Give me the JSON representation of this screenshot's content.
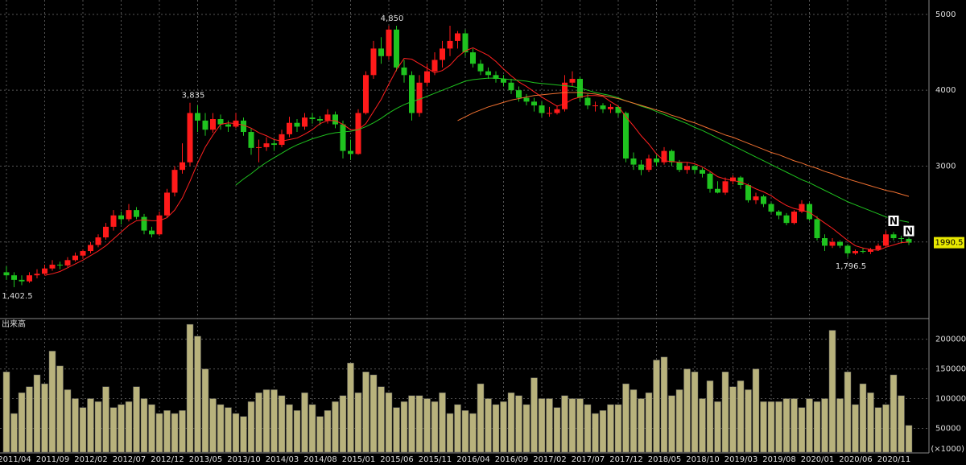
{
  "chart_data": {
    "type": "candlestick",
    "categories": [
      "2011/04",
      null,
      null,
      null,
      null,
      "2011/09",
      null,
      null,
      null,
      null,
      "2012/02",
      null,
      null,
      null,
      null,
      "2012/07",
      null,
      null,
      null,
      null,
      "2012/12",
      null,
      null,
      null,
      null,
      "2013/05",
      null,
      null,
      null,
      null,
      "2013/10",
      null,
      null,
      null,
      null,
      "2014/03",
      null,
      null,
      null,
      null,
      "2014/08",
      null,
      null,
      null,
      null,
      "2015/01",
      null,
      null,
      null,
      null,
      "2015/06",
      null,
      null,
      null,
      null,
      "2015/11",
      null,
      null,
      null,
      null,
      "2016/04",
      null,
      null,
      null,
      null,
      "2016/09",
      null,
      null,
      null,
      null,
      "2017/02",
      null,
      null,
      null,
      null,
      "2017/07",
      null,
      null,
      null,
      null,
      "2017/12",
      null,
      null,
      null,
      null,
      "2018/05",
      null,
      null,
      null,
      null,
      "2018/10",
      null,
      null,
      null,
      null,
      "2019/03",
      null,
      null,
      null,
      null,
      "2019/08",
      null,
      null,
      null,
      null,
      "2020/01",
      null,
      null,
      null,
      null,
      "2020/06",
      null,
      null,
      null,
      null,
      "2020/11",
      null,
      null,
      null
    ],
    "ohlc": [
      [
        1600,
        1680,
        1500,
        1560
      ],
      [
        1560,
        1600,
        1402.5,
        1500
      ],
      [
        1500,
        1560,
        1430,
        1480
      ],
      [
        1480,
        1600,
        1460,
        1560
      ],
      [
        1560,
        1640,
        1520,
        1580
      ],
      [
        1580,
        1700,
        1560,
        1650
      ],
      [
        1650,
        1760,
        1620,
        1700
      ],
      [
        1700,
        1740,
        1640,
        1690
      ],
      [
        1690,
        1800,
        1670,
        1760
      ],
      [
        1760,
        1860,
        1740,
        1820
      ],
      [
        1820,
        1900,
        1780,
        1880
      ],
      [
        1880,
        2000,
        1850,
        1960
      ],
      [
        1960,
        2100,
        1930,
        2060
      ],
      [
        2060,
        2250,
        2030,
        2200
      ],
      [
        2200,
        2420,
        2150,
        2350
      ],
      [
        2350,
        2400,
        2230,
        2300
      ],
      [
        2300,
        2500,
        2270,
        2420
      ],
      [
        2420,
        2460,
        2300,
        2330
      ],
      [
        2330,
        2370,
        2100,
        2150
      ],
      [
        2150,
        2200,
        2060,
        2100
      ],
      [
        2100,
        2400,
        2080,
        2350
      ],
      [
        2350,
        2700,
        2320,
        2650
      ],
      [
        2650,
        3000,
        2600,
        2950
      ],
      [
        2950,
        3300,
        2900,
        3050
      ],
      [
        3050,
        3835,
        3000,
        3700
      ],
      [
        3700,
        3800,
        3450,
        3600
      ],
      [
        3600,
        3700,
        3400,
        3480
      ],
      [
        3480,
        3700,
        3440,
        3620
      ],
      [
        3620,
        3680,
        3480,
        3550
      ],
      [
        3550,
        3600,
        3450,
        3520
      ],
      [
        3520,
        3700,
        3500,
        3600
      ],
      [
        3600,
        3640,
        3400,
        3450
      ],
      [
        3450,
        3500,
        3150,
        3240
      ],
      [
        3240,
        3350,
        3050,
        3250
      ],
      [
        3250,
        3380,
        3200,
        3300
      ],
      [
        3300,
        3360,
        3200,
        3280
      ],
      [
        3280,
        3480,
        3250,
        3420
      ],
      [
        3420,
        3650,
        3380,
        3570
      ],
      [
        3570,
        3620,
        3450,
        3520
      ],
      [
        3520,
        3700,
        3480,
        3640
      ],
      [
        3640,
        3700,
        3560,
        3620
      ],
      [
        3620,
        3660,
        3540,
        3600
      ],
      [
        3600,
        3750,
        3560,
        3680
      ],
      [
        3680,
        3720,
        3500,
        3550
      ],
      [
        3550,
        3600,
        3100,
        3200
      ],
      [
        3200,
        3350,
        3080,
        3160
      ],
      [
        3160,
        3750,
        3150,
        3700
      ],
      [
        3700,
        4250,
        3680,
        4200
      ],
      [
        4200,
        4650,
        4150,
        4550
      ],
      [
        4550,
        4700,
        4350,
        4450
      ],
      [
        4450,
        4850,
        4400,
        4800
      ],
      [
        4800,
        4850,
        4250,
        4300
      ],
      [
        4300,
        4400,
        4100,
        4200
      ],
      [
        4200,
        4250,
        3600,
        3700
      ],
      [
        3700,
        4200,
        3650,
        4100
      ],
      [
        4100,
        4350,
        4050,
        4250
      ],
      [
        4250,
        4500,
        4200,
        4400
      ],
      [
        4400,
        4650,
        4300,
        4550
      ],
      [
        4550,
        4850,
        4450,
        4650
      ],
      [
        4650,
        4780,
        4550,
        4750
      ],
      [
        4750,
        4800,
        4450,
        4500
      ],
      [
        4500,
        4550,
        4300,
        4350
      ],
      [
        4350,
        4400,
        4200,
        4250
      ],
      [
        4250,
        4300,
        4150,
        4200
      ],
      [
        4200,
        4250,
        4100,
        4150
      ],
      [
        4150,
        4200,
        4050,
        4100
      ],
      [
        4100,
        4150,
        3950,
        4000
      ],
      [
        4000,
        4050,
        3850,
        3900
      ],
      [
        3900,
        3950,
        3800,
        3850
      ],
      [
        3850,
        3900,
        3720,
        3800
      ],
      [
        3800,
        3850,
        3650,
        3700
      ],
      [
        3700,
        3780,
        3650,
        3700
      ],
      [
        3700,
        3800,
        3680,
        3750
      ],
      [
        3750,
        4200,
        3720,
        4100
      ],
      [
        4100,
        4250,
        4050,
        4150
      ],
      [
        4150,
        4180,
        3850,
        3900
      ],
      [
        3900,
        3950,
        3750,
        3800
      ],
      [
        3800,
        3850,
        3720,
        3800
      ],
      [
        3800,
        3830,
        3700,
        3750
      ],
      [
        3750,
        3820,
        3700,
        3780
      ],
      [
        3780,
        3800,
        3650,
        3700
      ],
      [
        3700,
        3720,
        3050,
        3100
      ],
      [
        3100,
        3180,
        2950,
        3020
      ],
      [
        3020,
        3080,
        2880,
        2950
      ],
      [
        2950,
        3150,
        2920,
        3100
      ],
      [
        3100,
        3150,
        3000,
        3050
      ],
      [
        3050,
        3250,
        3020,
        3200
      ],
      [
        3200,
        3220,
        3000,
        3050
      ],
      [
        3050,
        3080,
        2920,
        2950
      ],
      [
        2950,
        3050,
        2900,
        3000
      ],
      [
        3000,
        3020,
        2900,
        2950
      ],
      [
        2950,
        2980,
        2850,
        2900
      ],
      [
        2900,
        2920,
        2650,
        2700
      ],
      [
        2700,
        2800,
        2640,
        2650
      ],
      [
        2650,
        2850,
        2620,
        2800
      ],
      [
        2800,
        2880,
        2760,
        2850
      ],
      [
        2850,
        2870,
        2700,
        2750
      ],
      [
        2750,
        2770,
        2520,
        2550
      ],
      [
        2550,
        2650,
        2500,
        2600
      ],
      [
        2600,
        2620,
        2460,
        2500
      ],
      [
        2500,
        2520,
        2380,
        2400
      ],
      [
        2400,
        2420,
        2300,
        2350
      ],
      [
        2350,
        2380,
        2220,
        2250
      ],
      [
        2250,
        2420,
        2230,
        2400
      ],
      [
        2400,
        2550,
        2380,
        2500
      ],
      [
        2500,
        2520,
        2280,
        2300
      ],
      [
        2300,
        2340,
        2020,
        2050
      ],
      [
        2050,
        2100,
        1880,
        1950
      ],
      [
        1950,
        2050,
        1920,
        2000
      ],
      [
        2000,
        2020,
        1920,
        1950
      ],
      [
        1950,
        1970,
        1796.5,
        1850
      ],
      [
        1850,
        1900,
        1830,
        1880
      ],
      [
        1880,
        1920,
        1850,
        1870
      ],
      [
        1870,
        1920,
        1840,
        1900
      ],
      [
        1900,
        1980,
        1880,
        1950
      ],
      [
        1950,
        2150,
        1930,
        2100
      ],
      [
        2100,
        2130,
        2020,
        2050
      ],
      [
        2050,
        2080,
        1980,
        2040
      ],
      [
        2040,
        2060,
        1960,
        1990.5
      ]
    ],
    "up_color": "#ff1a1a",
    "down_color": "#1fc31f",
    "lines": [
      {
        "color": "#ff2020",
        "values": [
          null,
          null,
          null,
          null,
          null,
          1560,
          1580,
          1610,
          1660,
          1710,
          1760,
          1820,
          1880,
          1950,
          2040,
          2130,
          2220,
          2280,
          2290,
          2280,
          2280,
          2320,
          2420,
          2580,
          2800,
          3040,
          3250,
          3410,
          3550,
          3570,
          3560,
          3540,
          3500,
          3440,
          3400,
          3350,
          3330,
          3350,
          3370,
          3420,
          3480,
          3560,
          3600,
          3600,
          3550,
          3480,
          3480,
          3560,
          3720,
          3880,
          4080,
          4270,
          4420,
          4410,
          4350,
          4290,
          4230,
          4260,
          4330,
          4440,
          4520,
          4560,
          4510,
          4460,
          4380,
          4280,
          4190,
          4110,
          4050,
          3980,
          3910,
          3850,
          3790,
          3820,
          3880,
          3910,
          3930,
          3930,
          3920,
          3850,
          3790,
          3650,
          3530,
          3400,
          3290,
          3160,
          3070,
          3060,
          3050,
          3050,
          3030,
          2990,
          2930,
          2860,
          2830,
          2810,
          2790,
          2750,
          2700,
          2660,
          2610,
          2540,
          2480,
          2440,
          2420,
          2390,
          2320,
          2250,
          2180,
          2100,
          2020,
          1950,
          1920,
          1900,
          1890,
          1930,
          1960,
          1990,
          2000
        ]
      },
      {
        "color": "#1fc31f",
        "values": [
          null,
          null,
          null,
          null,
          null,
          null,
          null,
          null,
          null,
          null,
          null,
          null,
          null,
          null,
          null,
          null,
          null,
          null,
          null,
          null,
          null,
          null,
          null,
          null,
          null,
          null,
          null,
          null,
          null,
          null,
          2750,
          2830,
          2900,
          2980,
          3050,
          3110,
          3170,
          3230,
          3280,
          3320,
          3360,
          3390,
          3420,
          3440,
          3450,
          3460,
          3480,
          3520,
          3570,
          3630,
          3700,
          3760,
          3810,
          3850,
          3880,
          3920,
          3960,
          4000,
          4040,
          4080,
          4120,
          4140,
          4150,
          4160,
          4160,
          4150,
          4140,
          4130,
          4120,
          4100,
          4090,
          4080,
          4070,
          4060,
          4050,
          4030,
          4000,
          3970,
          3950,
          3930,
          3900,
          3860,
          3830,
          3790,
          3760,
          3720,
          3680,
          3640,
          3600,
          3560,
          3510,
          3470,
          3420,
          3370,
          3320,
          3270,
          3220,
          3170,
          3120,
          3070,
          3020,
          2970,
          2920,
          2870,
          2820,
          2780,
          2730,
          2680,
          2630,
          2580,
          2530,
          2490,
          2450,
          2410,
          2370,
          2330,
          2300,
          2280,
          2260
        ]
      },
      {
        "color": "#f07030",
        "values": [
          null,
          null,
          null,
          null,
          null,
          null,
          null,
          null,
          null,
          null,
          null,
          null,
          null,
          null,
          null,
          null,
          null,
          null,
          null,
          null,
          null,
          null,
          null,
          null,
          null,
          null,
          null,
          null,
          null,
          null,
          null,
          null,
          null,
          null,
          null,
          null,
          null,
          null,
          null,
          null,
          null,
          null,
          null,
          null,
          null,
          null,
          null,
          null,
          null,
          null,
          null,
          null,
          null,
          null,
          null,
          null,
          null,
          null,
          null,
          3600,
          3650,
          3700,
          3740,
          3780,
          3810,
          3840,
          3870,
          3890,
          3910,
          3930,
          3940,
          3950,
          3960,
          3970,
          3970,
          3970,
          3960,
          3950,
          3930,
          3910,
          3890,
          3860,
          3830,
          3800,
          3770,
          3740,
          3710,
          3670,
          3640,
          3600,
          3570,
          3530,
          3490,
          3450,
          3410,
          3380,
          3340,
          3300,
          3260,
          3220,
          3180,
          3150,
          3110,
          3070,
          3040,
          3000,
          2970,
          2930,
          2900,
          2860,
          2830,
          2800,
          2770,
          2740,
          2710,
          2680,
          2660,
          2630,
          2600
        ]
      }
    ],
    "ylim": [
      1000,
      5190
    ],
    "yticks": [
      2000,
      3000,
      4000,
      5000
    ],
    "annotations": [
      {
        "value": 3835,
        "label": "3,835"
      },
      {
        "value": 4850,
        "label": "4,850"
      },
      {
        "value": 1402.5,
        "label": "1,402.5"
      },
      {
        "value": 1796.5,
        "label": "1,796.5"
      }
    ],
    "last_price": 1990.5,
    "signals": [
      "N",
      "N"
    ],
    "volume": {
      "title": "出来高",
      "unit": "(×1000)",
      "color": "#b8b27c",
      "values": [
        145000,
        75000,
        110000,
        120000,
        140000,
        125000,
        180000,
        155000,
        115000,
        100000,
        85000,
        100000,
        95000,
        120000,
        85000,
        90000,
        95000,
        120000,
        100000,
        90000,
        75000,
        80000,
        75000,
        80000,
        225000,
        205000,
        150000,
        100000,
        90000,
        85000,
        75000,
        70000,
        95000,
        110000,
        115000,
        115000,
        105000,
        90000,
        80000,
        110000,
        90000,
        70000,
        80000,
        95000,
        105000,
        160000,
        110000,
        145000,
        140000,
        120000,
        110000,
        85000,
        95000,
        105000,
        105000,
        100000,
        95000,
        110000,
        75000,
        90000,
        80000,
        75000,
        125000,
        100000,
        90000,
        95000,
        110000,
        105000,
        90000,
        135000,
        100000,
        100000,
        85000,
        105000,
        100000,
        100000,
        90000,
        75000,
        80000,
        90000,
        90000,
        125000,
        115000,
        100000,
        110000,
        165000,
        170000,
        105000,
        115000,
        150000,
        145000,
        100000,
        130000,
        95000,
        145000,
        120000,
        130000,
        115000,
        150000,
        95000,
        95000,
        95000,
        100000,
        100000,
        85000,
        100000,
        95000,
        100000,
        215000,
        100000,
        145000,
        90000,
        125000,
        110000,
        85000,
        90000,
        140000,
        105000,
        55000
      ],
      "ylim": [
        10000,
        232000
      ],
      "yticks": [
        50000,
        100000,
        150000,
        200000
      ]
    }
  }
}
